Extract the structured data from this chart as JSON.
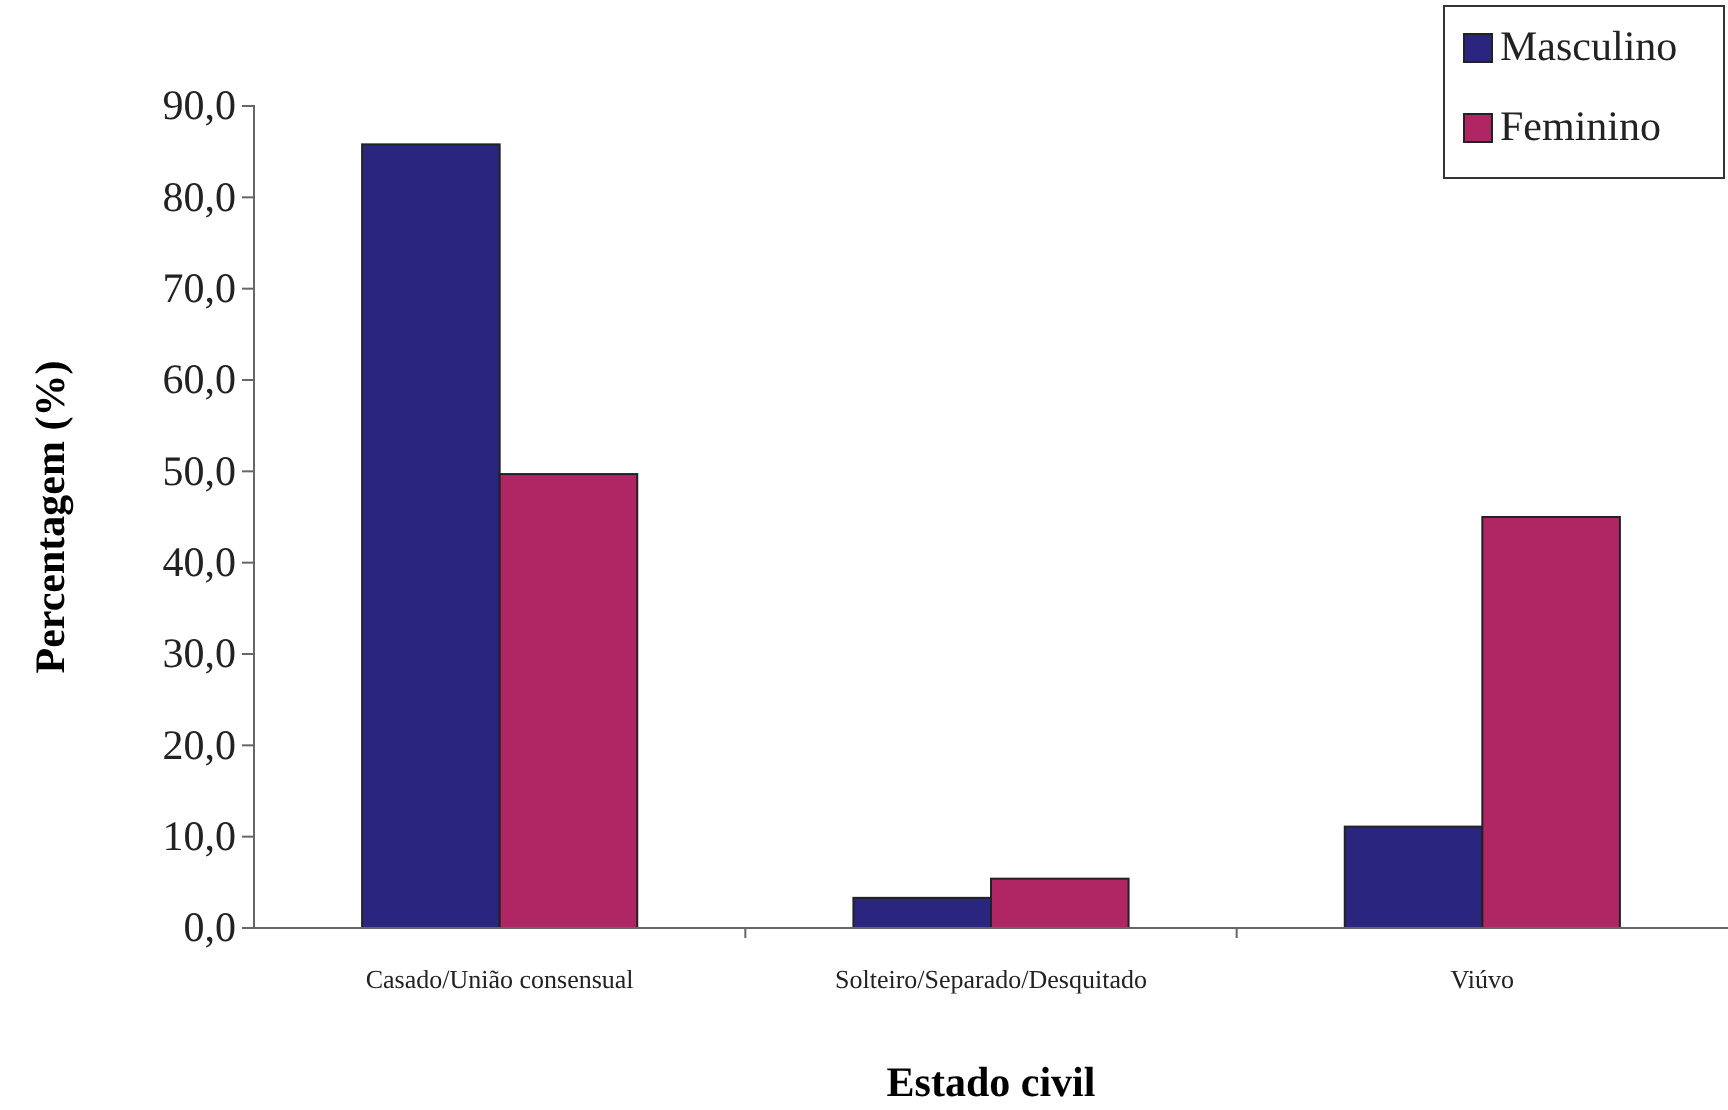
{
  "chart_data": {
    "type": "bar",
    "xlabel": "Estado civil",
    "ylabel": "Percentagem (%)",
    "categories": [
      "Casado/União consensual",
      "Solteiro/Separado/Desquitado",
      "Viúvo"
    ],
    "series": [
      {
        "name": "Masculino",
        "color": "#2a2680",
        "values": [
          85.8,
          3.3,
          11.1
        ]
      },
      {
        "name": "Feminino",
        "color": "#b02563",
        "values": [
          49.7,
          5.4,
          45.0
        ]
      }
    ],
    "ylim": [
      0,
      90
    ],
    "yticks": [
      {
        "value": 0,
        "label": "0,0"
      },
      {
        "value": 10,
        "label": "10,0"
      },
      {
        "value": 20,
        "label": "20,0"
      },
      {
        "value": 30,
        "label": "30,0"
      },
      {
        "value": 40,
        "label": "40,0"
      },
      {
        "value": 50,
        "label": "50,0"
      },
      {
        "value": 60,
        "label": "60,0"
      },
      {
        "value": 70,
        "label": "70,0"
      },
      {
        "value": 80,
        "label": "80,0"
      },
      {
        "value": 90,
        "label": "90,0"
      }
    ],
    "legend": "top right",
    "grid": false
  }
}
